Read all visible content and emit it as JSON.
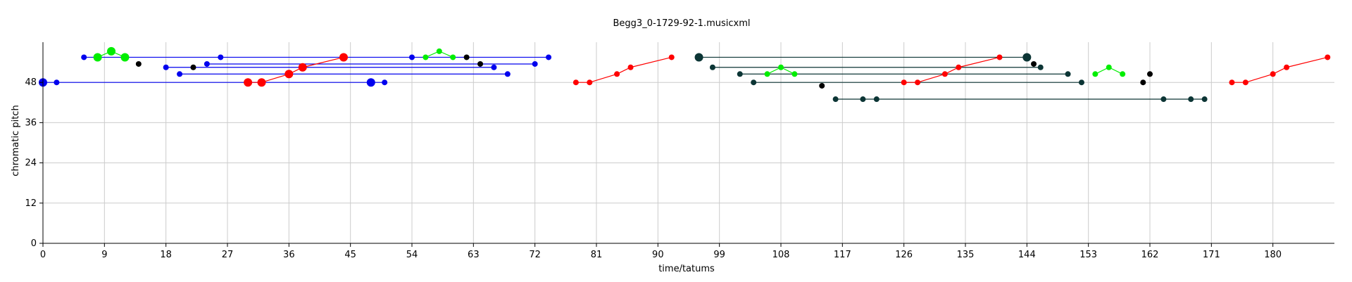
{
  "chart_data": {
    "type": "scatter",
    "title": "Begg3_0-1729-92-1.musicxml",
    "xlabel": "time/tatums",
    "ylabel": "chromatic pitch",
    "xlim": [
      0,
      189
    ],
    "ylim": [
      0,
      60
    ],
    "xticks": [
      0,
      9,
      18,
      27,
      36,
      45,
      54,
      63,
      72,
      81,
      90,
      99,
      108,
      117,
      126,
      135,
      144,
      153,
      162,
      171,
      180
    ],
    "yticks": [
      0,
      12,
      24,
      36,
      48
    ],
    "grid": true,
    "colors": {
      "blue": "#0000ee",
      "red": "#ff0000",
      "green": "#00ee00",
      "black": "#000000",
      "teal": "#0c3535",
      "grid": "#cccccc",
      "axis": "#000000"
    },
    "lines": [
      {
        "color": "blue",
        "points": [
          [
            6,
            55.5
          ],
          [
            74,
            55.5
          ]
        ]
      },
      {
        "color": "blue",
        "points": [
          [
            24,
            53.5
          ],
          [
            72,
            53.5
          ]
        ]
      },
      {
        "color": "blue",
        "points": [
          [
            18,
            52.5
          ],
          [
            66,
            52.5
          ]
        ]
      },
      {
        "color": "blue",
        "points": [
          [
            20,
            50.5
          ],
          [
            68,
            50.5
          ]
        ]
      },
      {
        "color": "blue",
        "points": [
          [
            0,
            48
          ],
          [
            50,
            48
          ]
        ]
      },
      {
        "color": "red",
        "points": [
          [
            30,
            48
          ],
          [
            32,
            48
          ],
          [
            36,
            50.5
          ],
          [
            38,
            52.5
          ],
          [
            44,
            55.5
          ]
        ]
      },
      {
        "color": "green",
        "points": [
          [
            8,
            55.5
          ],
          [
            10,
            57.3
          ],
          [
            12,
            55.5
          ]
        ]
      },
      {
        "color": "green",
        "points": [
          [
            56,
            55.5
          ],
          [
            58,
            57.3
          ],
          [
            60,
            55.5
          ]
        ]
      },
      {
        "color": "red",
        "points": [
          [
            78,
            48
          ],
          [
            80,
            48
          ],
          [
            84,
            50.5
          ],
          [
            86,
            52.5
          ],
          [
            92,
            55.5
          ]
        ]
      },
      {
        "color": "teal",
        "points": [
          [
            96,
            55.5
          ],
          [
            144,
            55.5
          ]
        ]
      },
      {
        "color": "teal",
        "points": [
          [
            98,
            52.5
          ],
          [
            146,
            52.5
          ]
        ]
      },
      {
        "color": "teal",
        "points": [
          [
            102,
            50.5
          ],
          [
            150,
            50.5
          ]
        ]
      },
      {
        "color": "teal",
        "points": [
          [
            104,
            48
          ],
          [
            152,
            48
          ]
        ]
      },
      {
        "color": "teal",
        "points": [
          [
            116,
            43
          ],
          [
            164,
            43
          ]
        ]
      },
      {
        "color": "teal",
        "points": [
          [
            164,
            43
          ],
          [
            168,
            43
          ],
          [
            170,
            43
          ]
        ]
      },
      {
        "color": "red",
        "points": [
          [
            126,
            48
          ],
          [
            128,
            48
          ],
          [
            132,
            50.5
          ],
          [
            134,
            52.5
          ],
          [
            140,
            55.5
          ]
        ]
      },
      {
        "color": "green",
        "points": [
          [
            106,
            50.5
          ],
          [
            108,
            52.5
          ],
          [
            110,
            50.5
          ]
        ]
      },
      {
        "color": "green",
        "points": [
          [
            154,
            50.5
          ],
          [
            156,
            52.5
          ],
          [
            158,
            50.5
          ]
        ]
      },
      {
        "color": "red",
        "points": [
          [
            174,
            48
          ],
          [
            176,
            48
          ],
          [
            180,
            50.5
          ],
          [
            182,
            52.5
          ],
          [
            188,
            55.5
          ]
        ]
      }
    ],
    "points": [
      {
        "x": 0,
        "y": 48,
        "color": "blue",
        "r": 6
      },
      {
        "x": 2,
        "y": 48,
        "color": "blue",
        "r": 4
      },
      {
        "x": 6,
        "y": 55.5,
        "color": "blue",
        "r": 4
      },
      {
        "x": 8,
        "y": 55.5,
        "color": "green",
        "r": 6
      },
      {
        "x": 10,
        "y": 57.3,
        "color": "green",
        "r": 6
      },
      {
        "x": 12,
        "y": 55.5,
        "color": "green",
        "r": 6
      },
      {
        "x": 14,
        "y": 53.5,
        "color": "black",
        "r": 4
      },
      {
        "x": 18,
        "y": 52.5,
        "color": "blue",
        "r": 4
      },
      {
        "x": 20,
        "y": 50.5,
        "color": "blue",
        "r": 4
      },
      {
        "x": 22,
        "y": 52.5,
        "color": "black",
        "r": 4
      },
      {
        "x": 24,
        "y": 53.5,
        "color": "blue",
        "r": 4
      },
      {
        "x": 26,
        "y": 55.5,
        "color": "blue",
        "r": 4
      },
      {
        "x": 30,
        "y": 48,
        "color": "red",
        "r": 6
      },
      {
        "x": 32,
        "y": 48,
        "color": "red",
        "r": 6
      },
      {
        "x": 36,
        "y": 50.5,
        "color": "red",
        "r": 6
      },
      {
        "x": 38,
        "y": 52.5,
        "color": "red",
        "r": 6
      },
      {
        "x": 44,
        "y": 55.5,
        "color": "red",
        "r": 6
      },
      {
        "x": 48,
        "y": 48,
        "color": "blue",
        "r": 6
      },
      {
        "x": 50,
        "y": 48,
        "color": "blue",
        "r": 4
      },
      {
        "x": 54,
        "y": 55.5,
        "color": "blue",
        "r": 4
      },
      {
        "x": 56,
        "y": 55.5,
        "color": "green",
        "r": 4
      },
      {
        "x": 58,
        "y": 57.3,
        "color": "green",
        "r": 4
      },
      {
        "x": 60,
        "y": 55.5,
        "color": "green",
        "r": 4
      },
      {
        "x": 62,
        "y": 55.5,
        "color": "black",
        "r": 4
      },
      {
        "x": 64,
        "y": 53.5,
        "color": "black",
        "r": 4
      },
      {
        "x": 66,
        "y": 52.5,
        "color": "blue",
        "r": 4
      },
      {
        "x": 68,
        "y": 50.5,
        "color": "blue",
        "r": 4
      },
      {
        "x": 72,
        "y": 53.5,
        "color": "blue",
        "r": 4
      },
      {
        "x": 74,
        "y": 55.5,
        "color": "blue",
        "r": 4
      },
      {
        "x": 78,
        "y": 48,
        "color": "red",
        "r": 4
      },
      {
        "x": 80,
        "y": 48,
        "color": "red",
        "r": 4
      },
      {
        "x": 84,
        "y": 50.5,
        "color": "red",
        "r": 4
      },
      {
        "x": 86,
        "y": 52.5,
        "color": "red",
        "r": 4
      },
      {
        "x": 92,
        "y": 55.5,
        "color": "red",
        "r": 4
      },
      {
        "x": 96,
        "y": 55.5,
        "color": "teal",
        "r": 6
      },
      {
        "x": 98,
        "y": 52.5,
        "color": "teal",
        "r": 4
      },
      {
        "x": 102,
        "y": 50.5,
        "color": "teal",
        "r": 4
      },
      {
        "x": 104,
        "y": 48,
        "color": "teal",
        "r": 4
      },
      {
        "x": 106,
        "y": 50.5,
        "color": "green",
        "r": 4
      },
      {
        "x": 108,
        "y": 52.5,
        "color": "green",
        "r": 4
      },
      {
        "x": 110,
        "y": 50.5,
        "color": "green",
        "r": 4
      },
      {
        "x": 114,
        "y": 47,
        "color": "black",
        "r": 4
      },
      {
        "x": 116,
        "y": 43,
        "color": "teal",
        "r": 4
      },
      {
        "x": 120,
        "y": 43,
        "color": "teal",
        "r": 4
      },
      {
        "x": 122,
        "y": 43,
        "color": "teal",
        "r": 4
      },
      {
        "x": 126,
        "y": 48,
        "color": "red",
        "r": 4
      },
      {
        "x": 128,
        "y": 48,
        "color": "red",
        "r": 4
      },
      {
        "x": 132,
        "y": 50.5,
        "color": "red",
        "r": 4
      },
      {
        "x": 134,
        "y": 52.5,
        "color": "red",
        "r": 4
      },
      {
        "x": 140,
        "y": 55.5,
        "color": "red",
        "r": 4
      },
      {
        "x": 144,
        "y": 55.5,
        "color": "teal",
        "r": 6
      },
      {
        "x": 145,
        "y": 53.5,
        "color": "black",
        "r": 4
      },
      {
        "x": 146,
        "y": 52.5,
        "color": "teal",
        "r": 4
      },
      {
        "x": 150,
        "y": 50.5,
        "color": "teal",
        "r": 4
      },
      {
        "x": 152,
        "y": 48,
        "color": "teal",
        "r": 4
      },
      {
        "x": 154,
        "y": 50.5,
        "color": "green",
        "r": 4
      },
      {
        "x": 156,
        "y": 52.5,
        "color": "green",
        "r": 4
      },
      {
        "x": 158,
        "y": 50.5,
        "color": "green",
        "r": 4
      },
      {
        "x": 161,
        "y": 48,
        "color": "black",
        "r": 4
      },
      {
        "x": 162,
        "y": 50.5,
        "color": "black",
        "r": 4
      },
      {
        "x": 164,
        "y": 43,
        "color": "teal",
        "r": 4
      },
      {
        "x": 168,
        "y": 43,
        "color": "teal",
        "r": 4
      },
      {
        "x": 170,
        "y": 43,
        "color": "teal",
        "r": 4
      },
      {
        "x": 174,
        "y": 48,
        "color": "red",
        "r": 4
      },
      {
        "x": 176,
        "y": 48,
        "color": "red",
        "r": 4
      },
      {
        "x": 180,
        "y": 50.5,
        "color": "red",
        "r": 4
      },
      {
        "x": 182,
        "y": 52.5,
        "color": "red",
        "r": 4
      },
      {
        "x": 188,
        "y": 55.5,
        "color": "red",
        "r": 4
      }
    ]
  }
}
